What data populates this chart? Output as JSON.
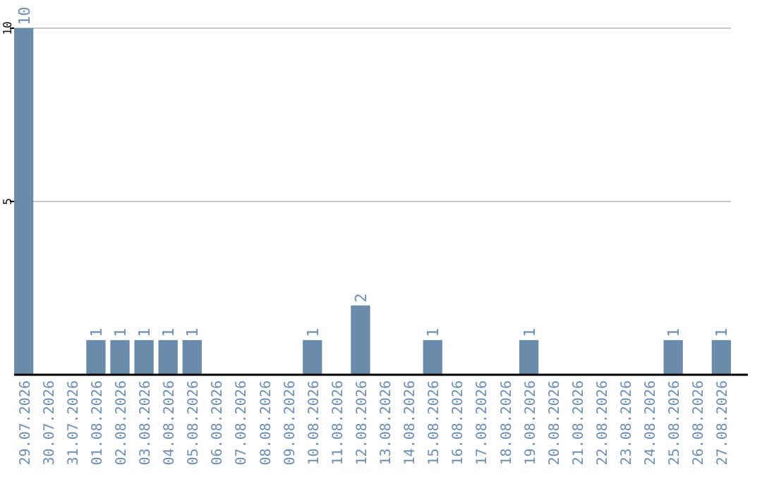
{
  "chart_data": {
    "type": "bar",
    "categories": [
      "29.07.2026",
      "30.07.2026",
      "31.07.2026",
      "01.08.2026",
      "02.08.2026",
      "03.08.2026",
      "04.08.2026",
      "05.08.2026",
      "06.08.2026",
      "07.08.2026",
      "08.08.2026",
      "09.08.2026",
      "10.08.2026",
      "11.08.2026",
      "12.08.2026",
      "13.08.2026",
      "14.08.2026",
      "15.08.2026",
      "16.08.2026",
      "17.08.2026",
      "18.08.2026",
      "19.08.2026",
      "20.08.2026",
      "21.08.2026",
      "22.08.2026",
      "23.08.2026",
      "24.08.2026",
      "25.08.2026",
      "26.08.2026",
      "27.08.2026"
    ],
    "values": [
      10,
      0,
      0,
      1,
      1,
      1,
      1,
      1,
      0,
      0,
      0,
      0,
      1,
      0,
      2,
      0,
      0,
      1,
      0,
      0,
      0,
      1,
      0,
      0,
      0,
      0,
      0,
      1,
      0,
      1
    ],
    "value_labels": [
      "10",
      null,
      null,
      "1",
      "1",
      "1",
      "1",
      "1",
      null,
      null,
      null,
      null,
      "1",
      null,
      "2",
      null,
      null,
      "1",
      null,
      null,
      null,
      "1",
      null,
      null,
      null,
      null,
      null,
      "1",
      null,
      "1"
    ],
    "color": "#6b8bab",
    "ylim": [
      0,
      10
    ],
    "yticks": [
      5,
      10
    ],
    "grid": "y"
  }
}
